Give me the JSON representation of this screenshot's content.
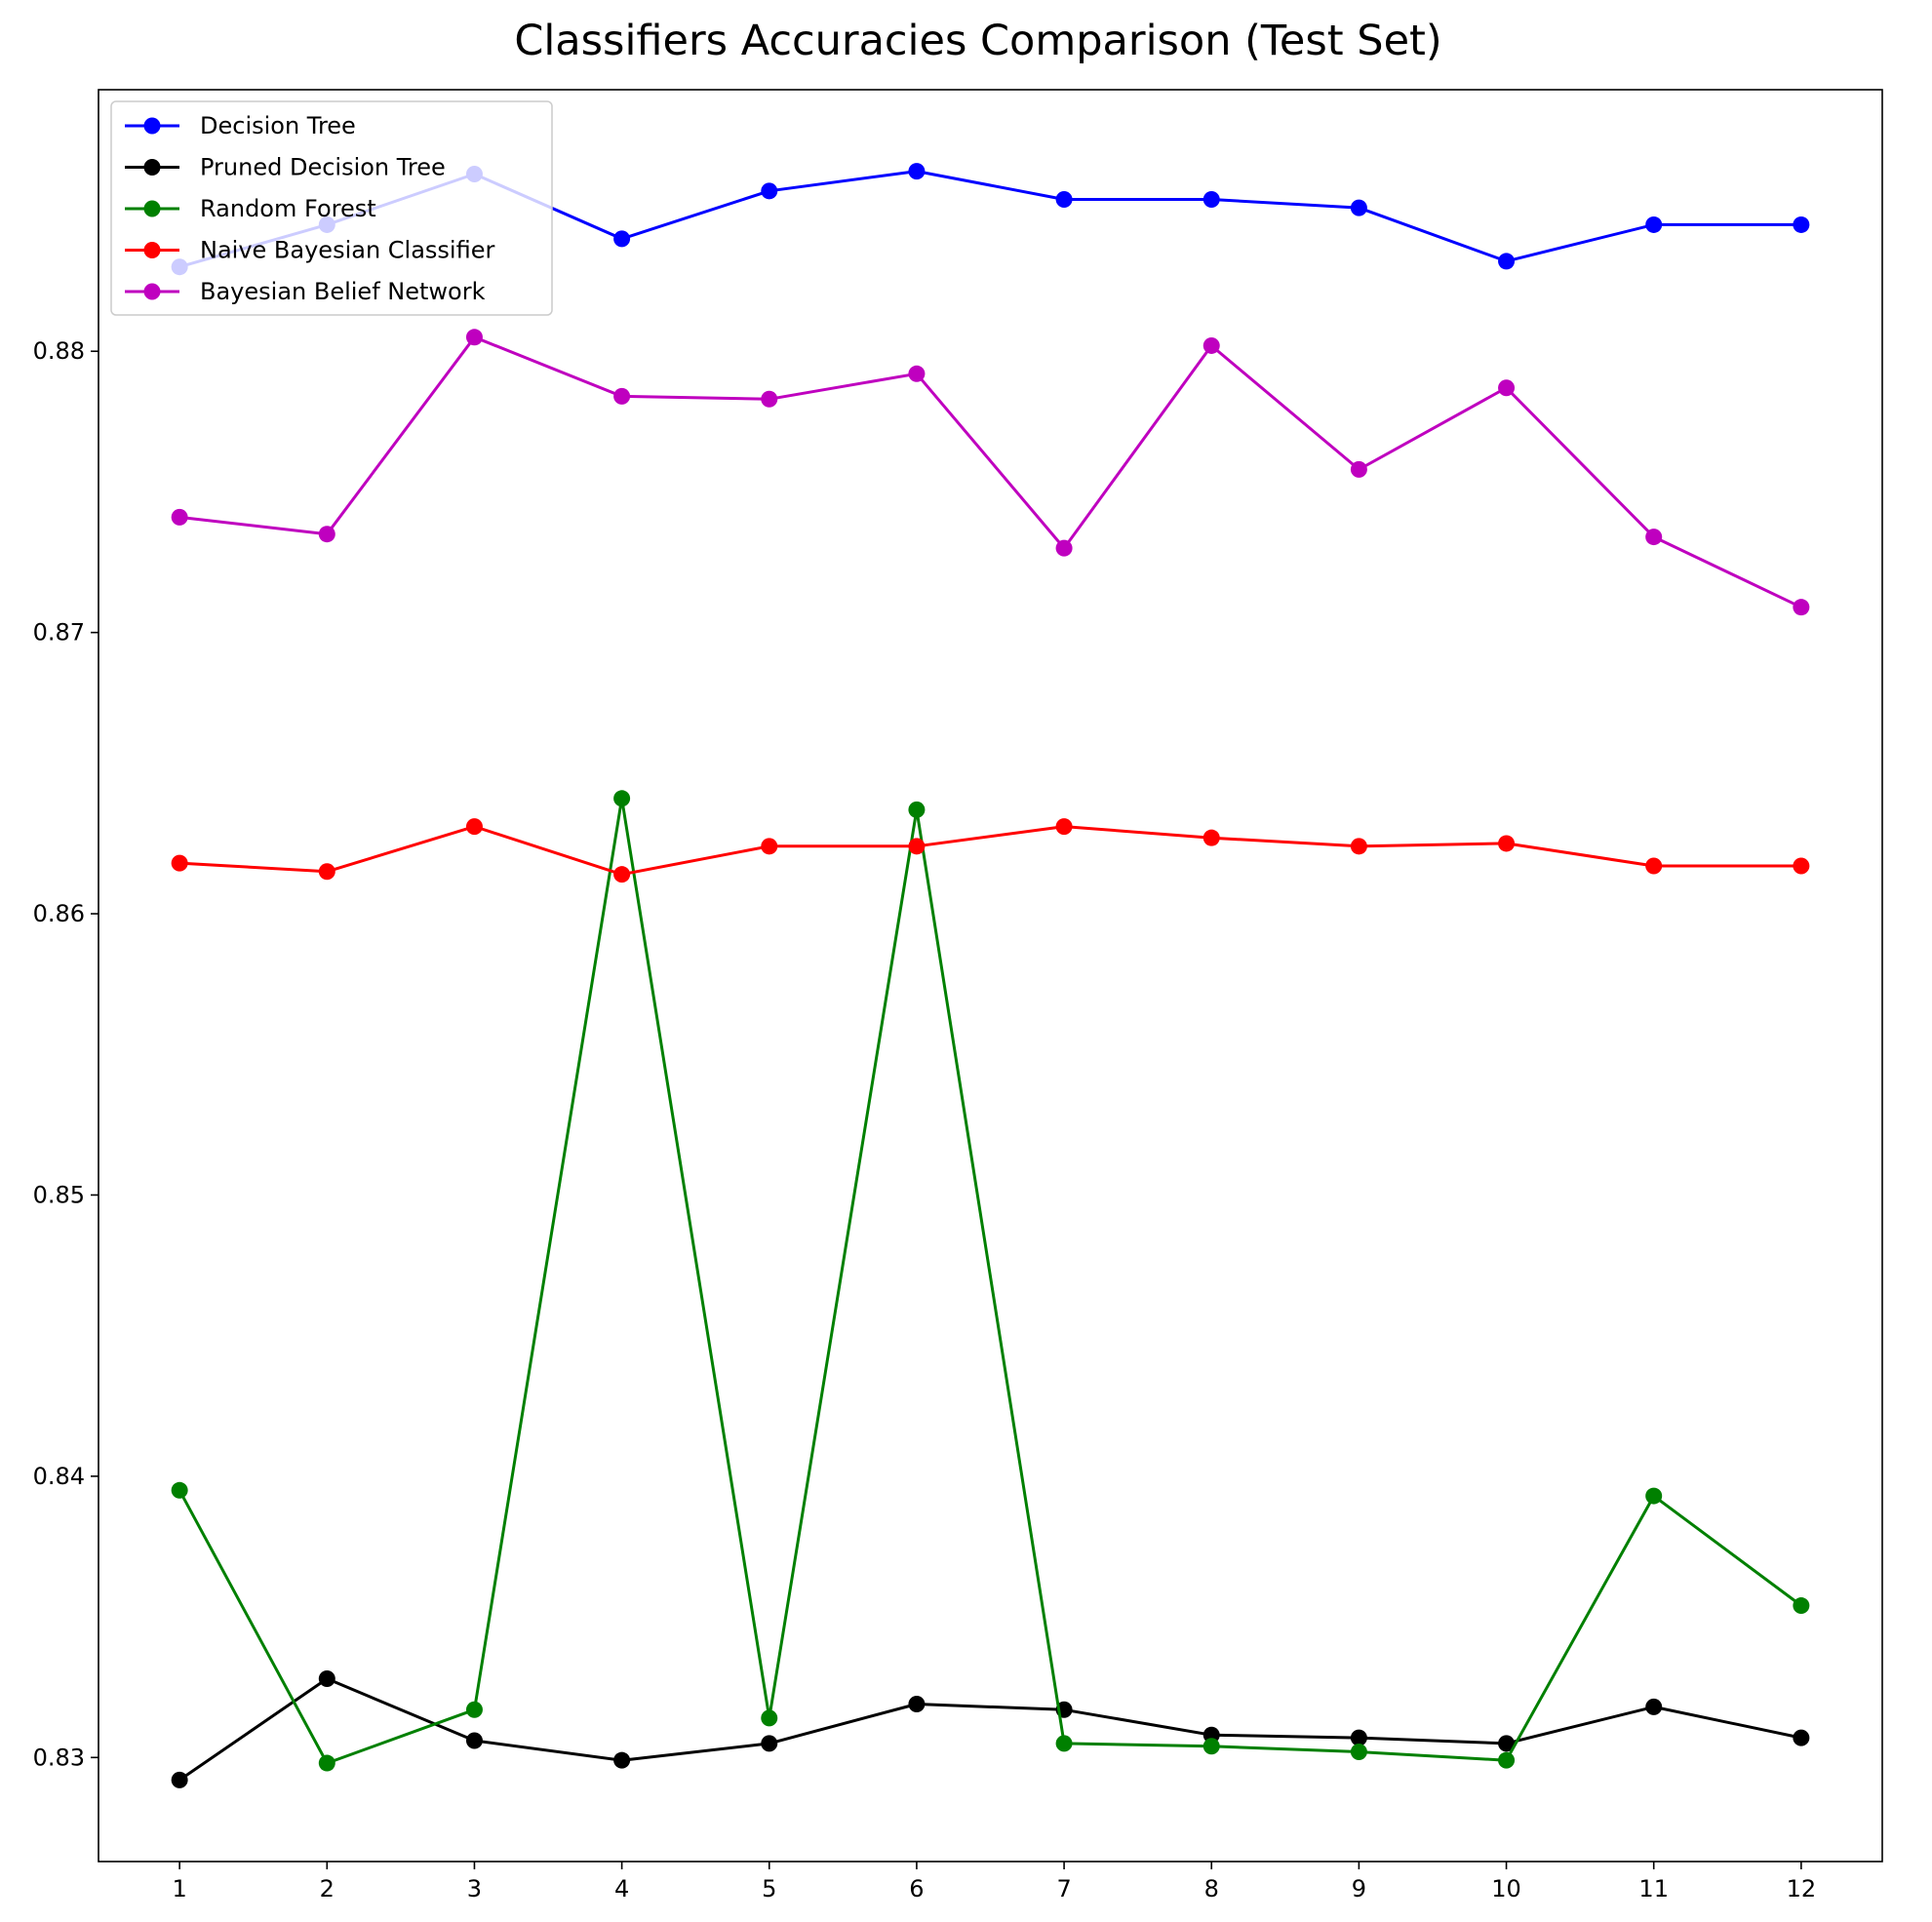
{
  "chart_data": {
    "type": "line",
    "title": "Classifiers Accuracies Comparison (Test Set)",
    "xlabel": "",
    "ylabel": "",
    "x": [
      1,
      2,
      3,
      4,
      5,
      6,
      7,
      8,
      9,
      10,
      11,
      12
    ],
    "x_ticks": [
      "1",
      "2",
      "3",
      "4",
      "5",
      "6",
      "7",
      "8",
      "9",
      "10",
      "11",
      "12"
    ],
    "y_ticks": [
      0.83,
      0.84,
      0.85,
      0.86,
      0.87,
      0.88
    ],
    "y_tick_labels": [
      "0.83",
      "0.84",
      "0.85",
      "0.86",
      "0.87",
      "0.88"
    ],
    "xlim": [
      0.45,
      12.55
    ],
    "ylim": [
      0.8263,
      0.8893
    ],
    "grid": false,
    "legend_position": "top-left",
    "marker": "circle",
    "series": [
      {
        "name": "Decision Tree",
        "color": "#0000ff",
        "values": [
          0.883,
          0.8845,
          0.8863,
          0.884,
          0.8857,
          0.8864,
          0.8854,
          0.8854,
          0.8851,
          0.8832,
          0.8845,
          0.8845
        ]
      },
      {
        "name": "Pruned Decision Tree",
        "color": "#000000",
        "values": [
          0.8292,
          0.8328,
          0.8306,
          0.8299,
          0.8305,
          0.8319,
          0.8317,
          0.8308,
          0.8307,
          0.8305,
          0.8318,
          0.8307
        ]
      },
      {
        "name": "Random Forest",
        "color": "#008000",
        "values": [
          0.8395,
          0.8298,
          0.8317,
          0.8641,
          0.8314,
          0.8637,
          0.8305,
          0.8304,
          0.8302,
          0.8299,
          0.8393,
          0.8354
        ]
      },
      {
        "name": "Naive Bayesian Classifier",
        "color": "#ff0000",
        "values": [
          0.8618,
          0.8615,
          0.8631,
          0.8614,
          0.8624,
          0.8624,
          0.8631,
          0.8627,
          0.8624,
          0.8625,
          0.8617,
          0.8617
        ]
      },
      {
        "name": "Bayesian Belief Network",
        "color": "#bf00bf",
        "values": [
          0.8741,
          0.8735,
          0.8805,
          0.8784,
          0.8783,
          0.8792,
          0.873,
          0.8802,
          0.8758,
          0.8787,
          0.8734,
          0.8709
        ]
      }
    ]
  }
}
